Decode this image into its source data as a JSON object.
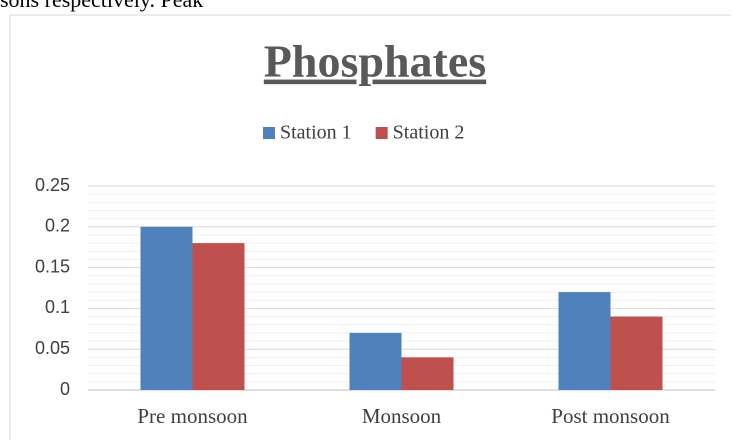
{
  "page_text": "sons  respectively.  Peak",
  "chart_data": {
    "type": "bar",
    "title": "Phosphates",
    "categories": [
      "Pre monsoon",
      "Monsoon",
      "Post monsoon"
    ],
    "series": [
      {
        "name": "Station 1",
        "color": "#4f81bd",
        "values": [
          0.2,
          0.07,
          0.12
        ]
      },
      {
        "name": "Station 2",
        "color": "#c0504d",
        "values": [
          0.18,
          0.04,
          0.09
        ]
      }
    ],
    "ylim": [
      0,
      0.25
    ],
    "yticks": [
      0,
      0.05,
      0.1,
      0.15,
      0.2,
      0.25
    ],
    "grid": true,
    "minor_grid": true,
    "legend": "top"
  }
}
